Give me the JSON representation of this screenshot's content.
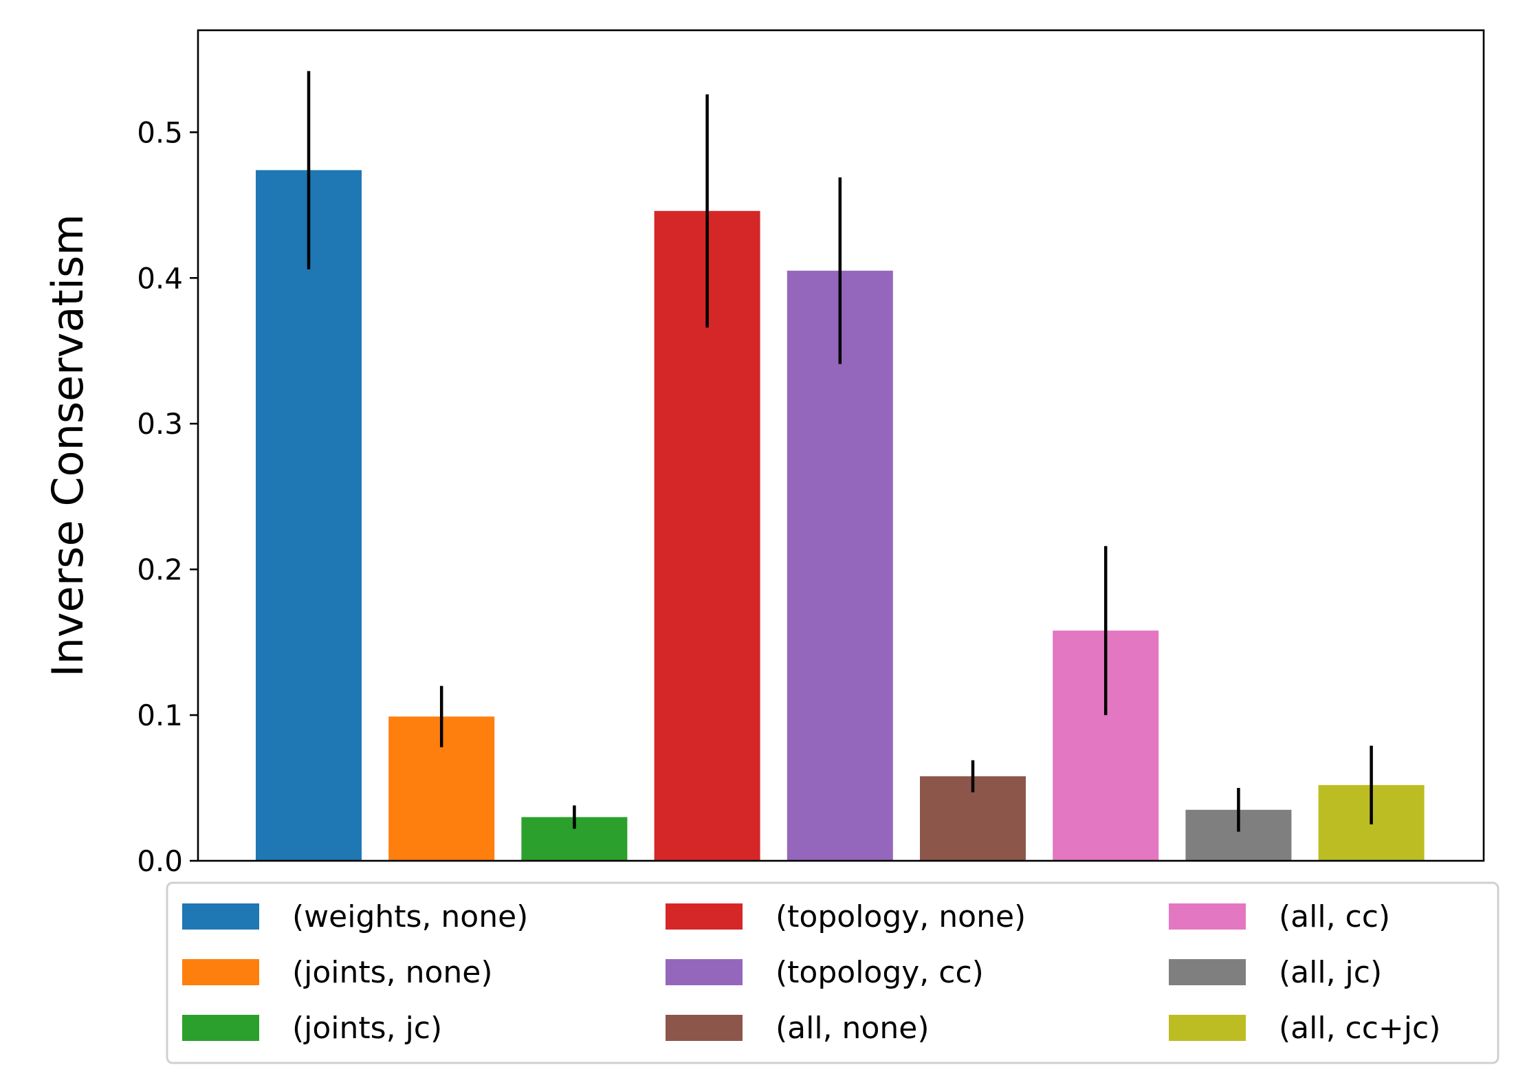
{
  "chart_data": {
    "type": "bar",
    "ylabel": "Inverse Conservatism",
    "xlabel": "",
    "ylim": [
      0,
      0.57
    ],
    "yticks": [
      "0.0",
      "0.1",
      "0.2",
      "0.3",
      "0.4",
      "0.5"
    ],
    "grid": false,
    "legend_position": "bottom",
    "legend_columns": 3,
    "categories": [
      "(weights, none)",
      "(joints, none)",
      "(joints, jc)",
      "(topology, none)",
      "(topology, cc)",
      "(all, none)",
      "(all, cc)",
      "(all, jc)",
      "(all, cc+jc)"
    ],
    "values": [
      0.474,
      0.099,
      0.03,
      0.446,
      0.405,
      0.058,
      0.158,
      0.035,
      0.052
    ],
    "errors": [
      0.068,
      0.021,
      0.008,
      0.08,
      0.064,
      0.011,
      0.058,
      0.015,
      0.027
    ],
    "colors": [
      "#1f77b4",
      "#ff7f0e",
      "#2ca02c",
      "#d62728",
      "#9467bd",
      "#8c564b",
      "#e377c2",
      "#7f7f7f",
      "#bcbd22"
    ]
  }
}
